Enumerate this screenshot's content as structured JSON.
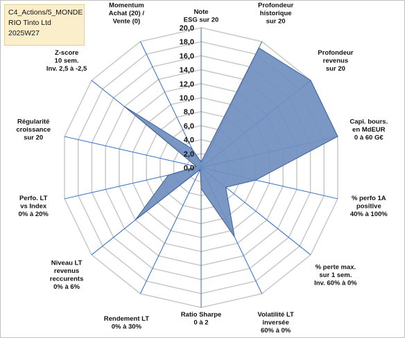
{
  "header": {
    "line1": "C4_Actions/5_MONDE",
    "line2": "RIO Tinto Ltd",
    "line3": "2025W27"
  },
  "colors": {
    "fill": "#6f8fbe",
    "stroke": "#3f5f96",
    "grid": "#c8c8c8",
    "axis": "#2e6cc4",
    "title_bg": "#fbeecb"
  },
  "chart_data": {
    "type": "radar",
    "title": "",
    "r_range": [
      0,
      20
    ],
    "r_ticks": [
      "0,0",
      "2,0",
      "4,0",
      "6,0",
      "8,0",
      "10,0",
      "12,0",
      "14,0",
      "16,0",
      "18,0",
      "20,0"
    ],
    "grid": true,
    "categories": [
      [
        "Note",
        "ESG sur 20"
      ],
      [
        "Profondeur",
        "historique",
        "sur 20"
      ],
      [
        "Profondeur",
        "revenus",
        "sur 20"
      ],
      [
        "Capi. bours.",
        "en MdEUR",
        "0 à 60 G€"
      ],
      [
        "% perfo 1A",
        "positive",
        "40% à 100%"
      ],
      [
        "% perte max.",
        "sur 1 sem.",
        "Inv. 60% à 0%"
      ],
      [
        "Volatilité LT",
        "inversée",
        "60% à 0%"
      ],
      [
        "Ratio Sharpe",
        "0 à 2"
      ],
      [
        "Rendement LT",
        "0% à 30%"
      ],
      [
        "Niveau LT",
        "revenus",
        "reccurents",
        "0% à 6%"
      ],
      [
        "Perfo. LT",
        "vs Index",
        "0% à 20%"
      ],
      [
        "Régularité",
        "croissance",
        "sur 20"
      ],
      [
        "Z-score",
        "10 sem.",
        "Inv. 2,5 à -2,5"
      ],
      [
        "Momentum",
        "Achat (20) /",
        "Vente (0)"
      ]
    ],
    "values": [
      0.8,
      19.0,
      20.0,
      20.0,
      8.0,
      4.5,
      11.0,
      3.0,
      0.3,
      12.0,
      4.8,
      0.7,
      14.0,
      3.0
    ]
  }
}
